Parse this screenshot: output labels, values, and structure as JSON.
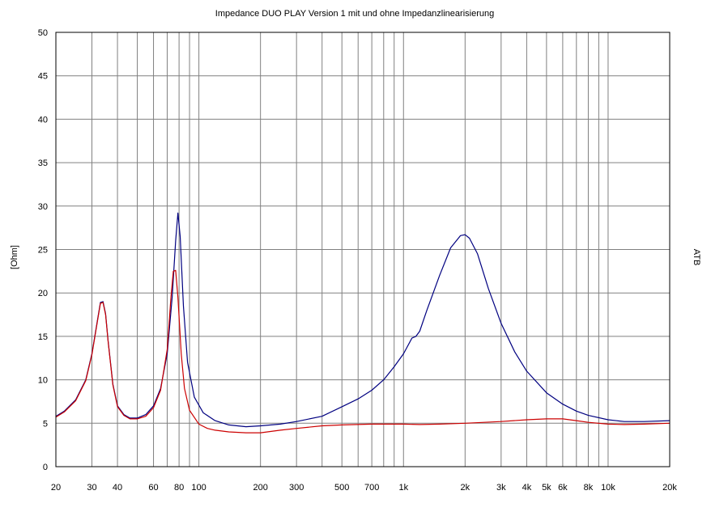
{
  "chart_data": {
    "type": "line",
    "title": "Impedance   DUO PLAY Version 1 mit und ohne Impedanzlinearisierung",
    "xlabel": "",
    "ylabel": "[Ohm]",
    "right_label": "ATB",
    "x_scale": "log",
    "xlim": [
      20,
      20000
    ],
    "ylim": [
      0,
      50
    ],
    "grid": true,
    "y_ticks": [
      {
        "value": 0,
        "label": "0"
      },
      {
        "value": 5,
        "label": "5"
      },
      {
        "value": 10,
        "label": "10"
      },
      {
        "value": 15,
        "label": "15"
      },
      {
        "value": 20,
        "label": "20"
      },
      {
        "value": 25,
        "label": "25"
      },
      {
        "value": 30,
        "label": "30"
      },
      {
        "value": 35,
        "label": "35"
      },
      {
        "value": 40,
        "label": "40"
      },
      {
        "value": 45,
        "label": "45"
      },
      {
        "value": 50,
        "label": "50"
      }
    ],
    "x_ticks": [
      {
        "value": 20,
        "label": "20"
      },
      {
        "value": 30,
        "label": "30"
      },
      {
        "value": 40,
        "label": "40"
      },
      {
        "value": 60,
        "label": "60"
      },
      {
        "value": 80,
        "label": "80"
      },
      {
        "value": 100,
        "label": "100"
      },
      {
        "value": 200,
        "label": "200"
      },
      {
        "value": 300,
        "label": "300"
      },
      {
        "value": 500,
        "label": "500"
      },
      {
        "value": 700,
        "label": "700"
      },
      {
        "value": 1000,
        "label": "1k"
      },
      {
        "value": 2000,
        "label": "2k"
      },
      {
        "value": 3000,
        "label": "3k"
      },
      {
        "value": 4000,
        "label": "4k"
      },
      {
        "value": 5000,
        "label": "5k"
      },
      {
        "value": 6000,
        "label": "6k"
      },
      {
        "value": 8000,
        "label": "8k"
      },
      {
        "value": 10000,
        "label": "10k"
      },
      {
        "value": 20000,
        "label": "20k"
      }
    ],
    "grid_x": [
      20,
      30,
      40,
      50,
      60,
      70,
      80,
      90,
      100,
      200,
      300,
      400,
      500,
      600,
      700,
      800,
      900,
      1000,
      2000,
      3000,
      4000,
      5000,
      6000,
      7000,
      8000,
      9000,
      10000,
      20000
    ],
    "series": [
      {
        "color": "#000080",
        "x": [
          20,
          22,
          25,
          28,
          30,
          32,
          33,
          34,
          35,
          36,
          38,
          40,
          43,
          46,
          50,
          55,
          60,
          65,
          70,
          74,
          77,
          79,
          81,
          84,
          88,
          95,
          105,
          120,
          140,
          170,
          200,
          250,
          300,
          400,
          500,
          600,
          700,
          800,
          900,
          1000,
          1100,
          1150,
          1200,
          1300,
          1500,
          1700,
          1900,
          2000,
          2100,
          2300,
          2600,
          3000,
          3500,
          4000,
          5000,
          6000,
          7000,
          8000,
          10000,
          12000,
          15000,
          20000
        ],
        "values": [
          5.8,
          6.4,
          7.7,
          10.0,
          13.0,
          17.0,
          18.9,
          19.0,
          17.6,
          14.5,
          9.5,
          7.0,
          6.0,
          5.6,
          5.6,
          6.0,
          7.0,
          9.0,
          13.0,
          19.5,
          26.0,
          29.2,
          26.5,
          18.5,
          12.0,
          8.0,
          6.2,
          5.3,
          4.8,
          4.6,
          4.7,
          4.9,
          5.2,
          5.8,
          6.9,
          7.8,
          8.8,
          10.0,
          11.5,
          13.0,
          14.8,
          15.0,
          15.6,
          18.0,
          22.0,
          25.2,
          26.6,
          26.7,
          26.3,
          24.5,
          20.5,
          16.5,
          13.2,
          11.0,
          8.5,
          7.2,
          6.4,
          5.9,
          5.4,
          5.2,
          5.2,
          5.3
        ]
      },
      {
        "color": "#cc0000",
        "x": [
          20,
          22,
          25,
          28,
          30,
          32,
          33,
          34,
          35,
          36,
          38,
          40,
          43,
          46,
          50,
          55,
          60,
          65,
          70,
          73,
          75,
          77,
          79,
          82,
          85,
          90,
          100,
          110,
          120,
          140,
          170,
          200,
          250,
          300,
          400,
          500,
          700,
          1000,
          1200,
          1500,
          2000,
          3000,
          4000,
          5000,
          6000,
          7000,
          8000,
          10000,
          12000,
          15000,
          20000
        ],
        "values": [
          5.7,
          6.3,
          7.6,
          9.9,
          12.9,
          16.9,
          18.8,
          18.9,
          17.5,
          14.4,
          9.4,
          6.9,
          5.9,
          5.5,
          5.5,
          5.8,
          6.8,
          8.8,
          13.5,
          19.5,
          22.5,
          22.6,
          19.5,
          13.0,
          9.0,
          6.5,
          4.9,
          4.4,
          4.2,
          4.0,
          3.9,
          3.9,
          4.2,
          4.4,
          4.7,
          4.8,
          4.9,
          4.9,
          4.85,
          4.9,
          5.0,
          5.2,
          5.4,
          5.5,
          5.5,
          5.3,
          5.1,
          4.9,
          4.85,
          4.9,
          5.0
        ]
      }
    ]
  }
}
